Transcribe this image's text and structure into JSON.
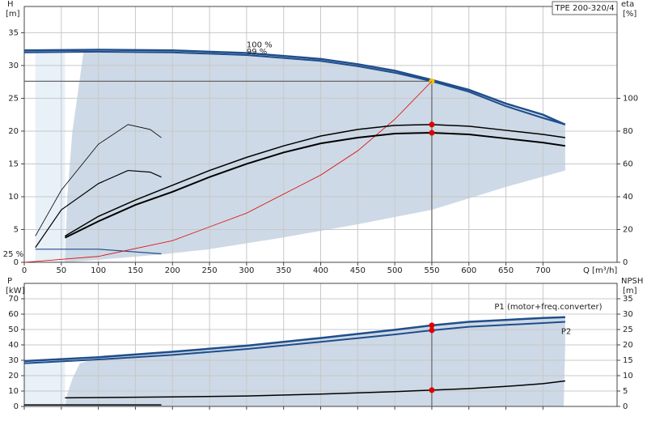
{
  "chart_data": [
    {
      "type": "line",
      "title": "TPE 200-320/4",
      "xlabel": "Q [m³/h]",
      "ylabel": "H",
      "yunit": "[m]",
      "y2label": "eta",
      "y2unit": "[%]",
      "xlim": [
        0,
        800
      ],
      "xticks": [
        0,
        50,
        100,
        150,
        200,
        250,
        300,
        350,
        400,
        450,
        500,
        550,
        600,
        650,
        700
      ],
      "ylim": [
        0,
        39
      ],
      "yticks": [
        0,
        5,
        10,
        15,
        20,
        25,
        30,
        35
      ],
      "y2lim": [
        0,
        156
      ],
      "y2ticks": [
        0,
        20,
        40,
        60,
        80,
        100
      ],
      "grid": true,
      "duty_x": 550,
      "regions": [
        {
          "color": "#e8f0f8",
          "x": [
            15,
            55,
            55,
            15
          ],
          "y": [
            0,
            0,
            32.2,
            32.2
          ]
        },
        {
          "color": "#cdd9e6",
          "x": [
            55,
            58,
            65,
            75,
            80,
            100,
            200,
            300,
            400,
            450,
            500,
            550,
            600,
            650,
            700,
            730,
            730,
            650,
            550,
            450,
            350,
            250,
            185,
            60
          ],
          "y": [
            0,
            10,
            20,
            28,
            32.1,
            32.2,
            32.1,
            31.7,
            30.8,
            30.0,
            29.0,
            27.6,
            26.1,
            24.0,
            22.3,
            21.0,
            14,
            11.5,
            8,
            5.8,
            3.8,
            2,
            1.2,
            0
          ]
        }
      ],
      "series": [
        {
          "name": "100 %",
          "color": "#1f4e8c",
          "width": 2.5,
          "x": [
            0,
            100,
            200,
            300,
            400,
            450,
            500,
            550,
            600,
            650,
            700,
            730
          ],
          "values": [
            32.3,
            32.4,
            32.3,
            31.9,
            31.0,
            30.2,
            29.2,
            27.8,
            26.3,
            24.2,
            22.5,
            21.0
          ],
          "label_i": 3
        },
        {
          "name": "99 %",
          "color": "#1f4e8c",
          "width": 2,
          "x": [
            0,
            100,
            200,
            300,
            400,
            450,
            500,
            550,
            600,
            650,
            700,
            730
          ],
          "values": [
            32.0,
            32.1,
            32.0,
            31.6,
            30.7,
            29.9,
            28.9,
            27.6,
            26.0,
            23.8,
            22.0,
            21.0
          ],
          "marker": "#f5c400",
          "label_i": 3
        },
        {
          "name": "25 %",
          "color": "#1f4e8c",
          "width": 1.2,
          "x": [
            15,
            100,
            185
          ],
          "values": [
            2.0,
            2.0,
            1.3
          ],
          "label_i": 0
        },
        {
          "color": "#e00000",
          "width": 0.8,
          "x": [
            0,
            100,
            200,
            300,
            400,
            450,
            500,
            550
          ],
          "values": [
            0,
            0.9,
            3.3,
            7.5,
            13.3,
            17.0,
            21.8,
            27.6
          ]
        },
        {
          "color": "#000",
          "width": 1.5,
          "axis": "y2",
          "x": [
            55,
            100,
            150,
            200,
            250,
            300,
            350,
            400,
            450,
            500,
            550,
            600,
            650,
            700,
            730
          ],
          "values": [
            16,
            28,
            38,
            47,
            56,
            64,
            71,
            77,
            81,
            83.5,
            84,
            83,
            80.5,
            78,
            76
          ],
          "marker": "#e00000"
        },
        {
          "color": "#000",
          "width": 2,
          "axis": "y2",
          "x": [
            55,
            100,
            150,
            200,
            250,
            300,
            350,
            400,
            450,
            500,
            550,
            600,
            650,
            700,
            730
          ],
          "values": [
            15,
            25,
            35,
            43,
            52,
            60,
            67,
            72.5,
            76,
            78.5,
            79,
            78,
            75.5,
            73,
            71
          ],
          "marker": "#e00000"
        },
        {
          "color": "#000",
          "width": 0.8,
          "axis": "y2",
          "x": [
            15,
            50,
            100,
            140,
            170,
            185
          ],
          "values": [
            16,
            44,
            72,
            84,
            81,
            76
          ]
        },
        {
          "color": "#000",
          "width": 1.2,
          "axis": "y2",
          "x": [
            15,
            50,
            100,
            140,
            170,
            185
          ],
          "values": [
            9,
            32,
            48,
            56,
            55,
            52
          ]
        }
      ]
    },
    {
      "type": "line",
      "ylabel": "P",
      "yunit": "[kW]",
      "y2label": "NPSH",
      "y2unit": "[m]",
      "xlim": [
        0,
        800
      ],
      "xticks": [
        0,
        50,
        100,
        150,
        200,
        250,
        300,
        350,
        400,
        450,
        500,
        550,
        600,
        650,
        700
      ],
      "ylim": [
        0,
        80
      ],
      "yticks": [
        0,
        10,
        20,
        30,
        40,
        50,
        60,
        70
      ],
      "y2lim": [
        0,
        40
      ],
      "y2ticks": [
        0,
        5,
        10,
        15,
        20,
        25,
        30,
        35
      ],
      "grid": true,
      "duty_x": 550,
      "regions": [
        {
          "color": "#e8f0f8",
          "x": [
            0,
            55,
            55,
            0
          ],
          "y": [
            0,
            0,
            30.5,
            29.5
          ]
        },
        {
          "color": "#cdd9e6",
          "x": [
            55,
            58,
            65,
            75,
            100,
            200,
            300,
            400,
            500,
            550,
            600,
            700,
            730,
            730,
            728
          ],
          "y": [
            0,
            8,
            18,
            28,
            31.5,
            35,
            39.5,
            44.5,
            49.5,
            52.7,
            55,
            57.5,
            58,
            40,
            0
          ]
        }
      ],
      "series": [
        {
          "name": "P1 (motor+freq.converter)",
          "color": "#1f4e8c",
          "width": 2.5,
          "x": [
            0,
            100,
            200,
            300,
            400,
            500,
            550,
            600,
            700,
            730
          ],
          "values": [
            29.5,
            32,
            35.5,
            39.5,
            44.5,
            49.8,
            52.7,
            55,
            57.5,
            58
          ],
          "marker": "#e00000",
          "label_i": 8
        },
        {
          "name": "P2",
          "color": "#1f4e8c",
          "width": 2,
          "x": [
            0,
            100,
            200,
            300,
            400,
            500,
            550,
            600,
            700,
            730
          ],
          "values": [
            28,
            30.5,
            33.5,
            37.3,
            42,
            46.8,
            49.5,
            51.8,
            54.2,
            55
          ],
          "marker": "#e00000",
          "label_i": 9
        },
        {
          "color": "#000",
          "width": 1.5,
          "axis": "y2",
          "x": [
            55,
            200,
            300,
            400,
            500,
            550,
            600,
            650,
            700,
            730
          ],
          "values": [
            2.8,
            3.1,
            3.4,
            4.0,
            4.8,
            5.3,
            5.8,
            6.5,
            7.4,
            8.3
          ],
          "marker": "#e00000"
        },
        {
          "color": "#000",
          "width": 1.5,
          "axis": "y2",
          "x": [
            0,
            100,
            185
          ],
          "values": [
            0.5,
            0.5,
            0.5
          ]
        }
      ]
    }
  ]
}
